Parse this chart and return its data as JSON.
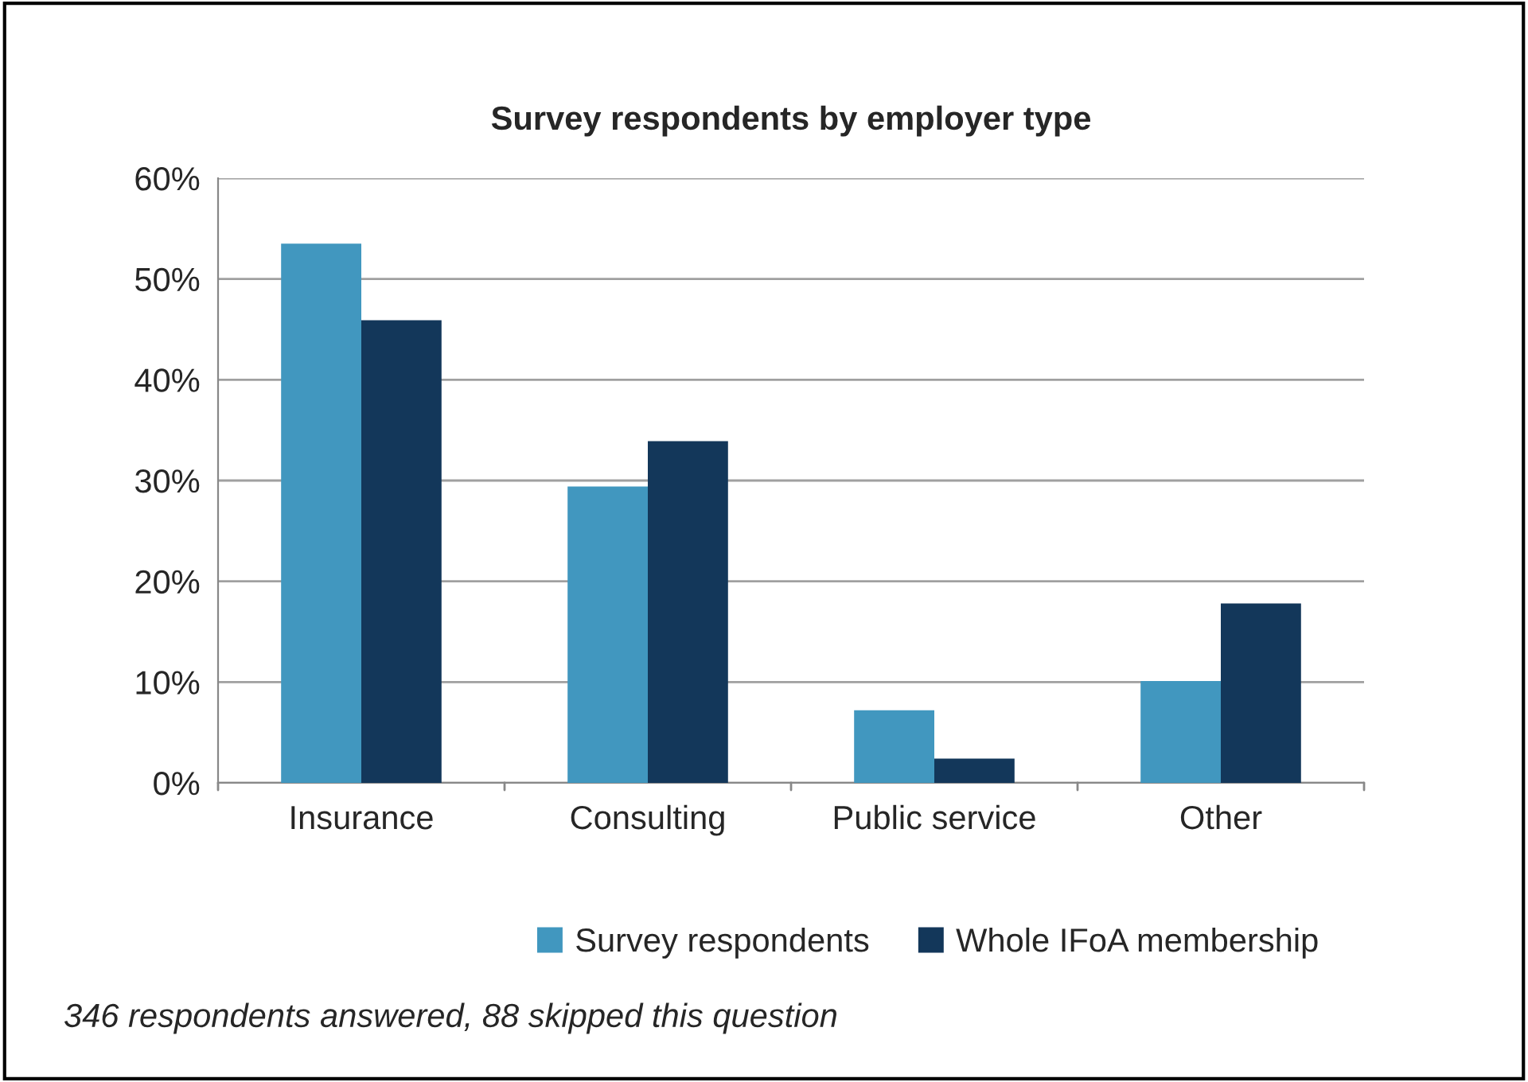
{
  "chart_data": {
    "type": "bar",
    "title": "Survey respondents by employer type",
    "categories": [
      "Insurance",
      "Consulting",
      "Public service",
      "Other"
    ],
    "series": [
      {
        "name": "Survey respondents",
        "color": "#4197bf",
        "values": [
          53.5,
          29.4,
          7.2,
          10.1
        ]
      },
      {
        "name": "Whole IFoA membership",
        "color": "#13375a",
        "values": [
          45.9,
          33.9,
          2.4,
          17.8
        ]
      }
    ],
    "ylim": [
      0,
      60
    ],
    "yticks": [
      {
        "value": 0,
        "label": "0%"
      },
      {
        "value": 10,
        "label": "10%"
      },
      {
        "value": 20,
        "label": "20%"
      },
      {
        "value": 30,
        "label": "30%"
      },
      {
        "value": 40,
        "label": "40%"
      },
      {
        "value": 50,
        "label": "50%"
      },
      {
        "value": 60,
        "label": "60%"
      }
    ],
    "grid": "y",
    "legend": "bottom",
    "annotations": [
      "346 respondents answered, 88 skipped this question"
    ]
  }
}
